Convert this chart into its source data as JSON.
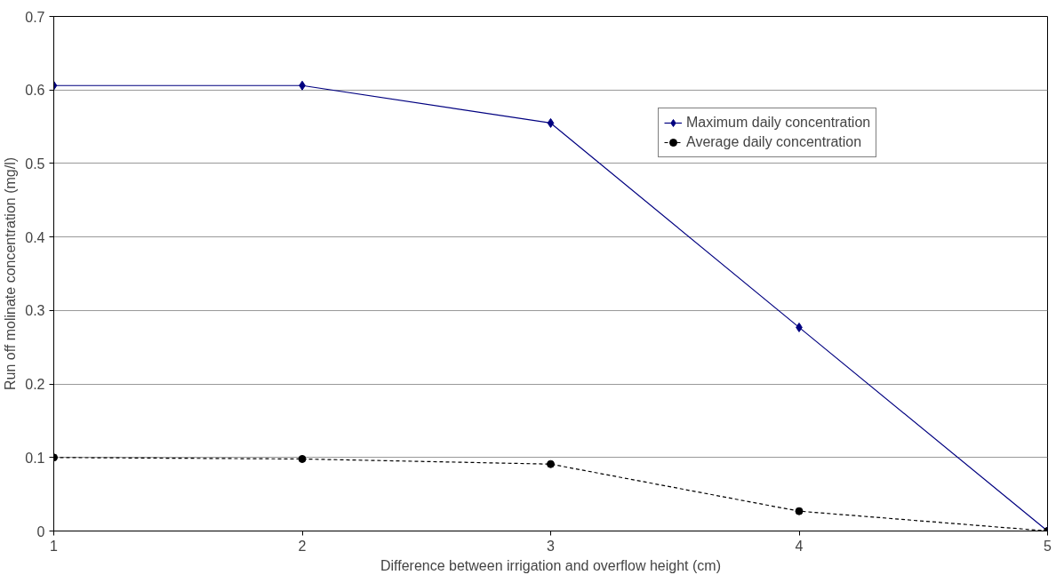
{
  "chart_data": {
    "type": "line",
    "xlabel": "Difference between irrigation and overflow height (cm)",
    "ylabel": "Run off molinate concentration (mg/l)",
    "x": [
      1,
      2,
      3,
      4,
      5
    ],
    "series": [
      {
        "name": "Maximum daily concentration",
        "color": "#000080",
        "marker": "diamond",
        "line_style": "solid",
        "values": [
          0.606,
          0.606,
          0.555,
          0.277,
          0
        ]
      },
      {
        "name": "Average daily concentration",
        "color": "#000000",
        "marker": "circle",
        "line_style": "dashed",
        "values": [
          0.1,
          0.098,
          0.091,
          0.027,
          0
        ]
      }
    ],
    "xlim": [
      1,
      5
    ],
    "xticks": [
      1,
      2,
      3,
      4,
      5
    ],
    "ylim": [
      0,
      0.7
    ],
    "yticks": [
      0,
      0.1,
      0.2,
      0.3,
      0.4,
      0.5,
      0.6,
      0.7
    ],
    "grid": "y",
    "legend": "top right"
  }
}
